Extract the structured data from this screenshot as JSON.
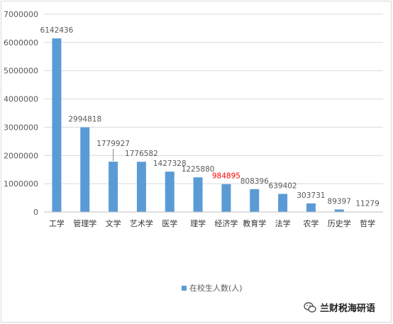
{
  "chart_data": {
    "type": "bar",
    "categories": [
      "工学",
      "管理学",
      "文学",
      "艺术学",
      "医学",
      "理学",
      "经济学",
      "教育学",
      "法学",
      "农学",
      "历史学",
      "哲学"
    ],
    "series": [
      {
        "name": "在校生人数(人)",
        "values": [
          6142436,
          2994818,
          1779927,
          1776582,
          1427328,
          1225880,
          984895,
          808396,
          639402,
          303731,
          89397,
          11279
        ]
      }
    ],
    "value_labels": [
      "6142436",
      "2994818",
      "1779927",
      "1776582",
      "1427328",
      "1225880",
      "984895",
      "808396",
      "639402",
      "303731",
      "89397",
      "11279"
    ],
    "y_ticks": [
      "0",
      "1000000",
      "2000000",
      "3000000",
      "4000000",
      "5000000",
      "6000000",
      "7000000"
    ],
    "ylim": [
      0,
      7000000
    ],
    "legend_position": "bottom",
    "highlight_index": 6,
    "colors": {
      "bar": "#5b9bd5",
      "highlight_label": "#ff0000",
      "grid": "#d9d9d9",
      "text": "#595959"
    }
  },
  "watermark": {
    "text": "兰财税海研语",
    "icon": "wechat-icon"
  }
}
